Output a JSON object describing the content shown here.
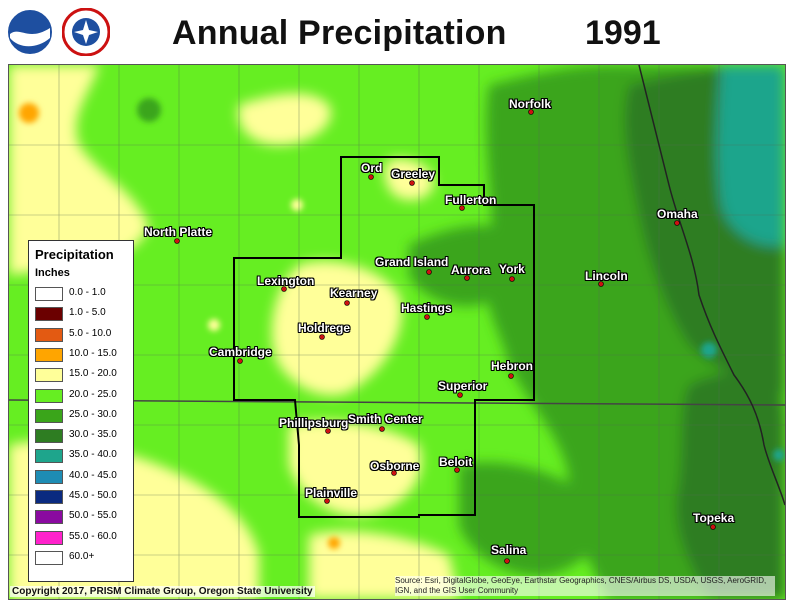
{
  "header": {
    "title": "Annual Precipitation",
    "year": "1991",
    "logos": [
      "noaa-logo",
      "nws-logo"
    ]
  },
  "legend": {
    "title": "Precipitation",
    "units": "Inches",
    "items": [
      {
        "label": "0.0 - 1.0",
        "color": "#ffffff"
      },
      {
        "label": "1.0 - 5.0",
        "color": "#6b0000"
      },
      {
        "label": "5.0 - 10.0",
        "color": "#e35a12"
      },
      {
        "label": "10.0 - 15.0",
        "color": "#ffa500"
      },
      {
        "label": "15.0 - 20.0",
        "color": "#ffff99"
      },
      {
        "label": "20.0 - 25.0",
        "color": "#66ee22"
      },
      {
        "label": "25.0 - 30.0",
        "color": "#3aa51a"
      },
      {
        "label": "30.0 - 35.0",
        "color": "#2e7d22"
      },
      {
        "label": "35.0 - 40.0",
        "color": "#1ea58c"
      },
      {
        "label": "40.0 - 45.0",
        "color": "#1e8cb4"
      },
      {
        "label": "45.0 - 50.0",
        "color": "#0a2a80"
      },
      {
        "label": "50.0 - 55.0",
        "color": "#8a0aa0"
      },
      {
        "label": "55.0 - 60.0",
        "color": "#ff22cc"
      },
      {
        "label": "60.0+",
        "color": "#ffffff"
      }
    ]
  },
  "cities": [
    "Norfolk",
    "Ord",
    "Greeley",
    "Fullerton",
    "North Platte",
    "Omaha",
    "Grand Island",
    "Aurora",
    "York",
    "Lincoln",
    "Lexington",
    "Kearney",
    "Hastings",
    "Holdrege",
    "Cambridge",
    "Hebron",
    "Superior",
    "Phillipsburg",
    "Smith Center",
    "Beloit",
    "Osborne",
    "Plainville",
    "Topeka",
    "Salina"
  ],
  "footer": {
    "copyright": "Copyright 2017, PRISM Climate Group, Oregon State University",
    "source": "Source: Esri, DigitalGlobe, GeoEye, Earthstar Geographics, CNES/Airbus DS, USDA, USGS, AeroGRID, IGN, and the GIS User Community"
  }
}
